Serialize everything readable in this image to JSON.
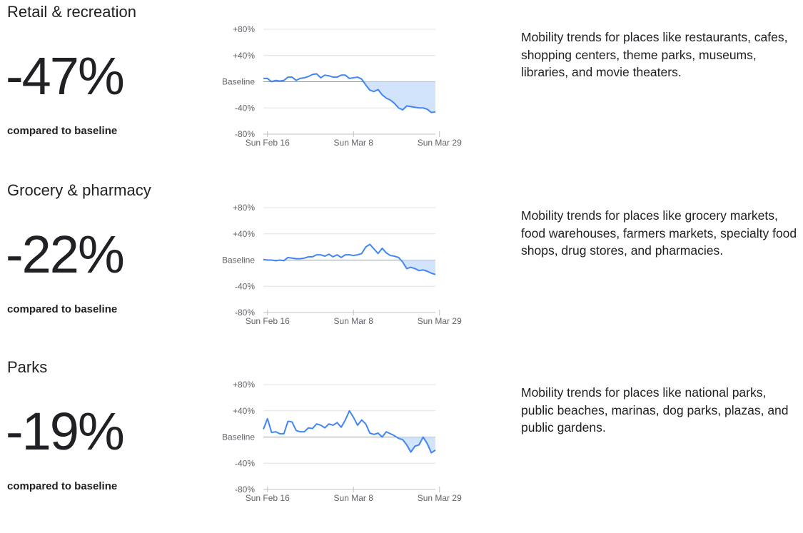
{
  "common": {
    "caption": "compared to baseline",
    "line_color": "#4285f4",
    "fill_color": "#d2e3fc"
  },
  "sections": [
    {
      "title": "Retail & recreation",
      "value": "-47%",
      "description": "Mobility trends for places like restaurants, cafes, shopping centers, theme parks, museums, libraries, and movie theaters."
    },
    {
      "title": "Grocery & pharmacy",
      "value": "-22%",
      "description": "Mobility trends for places like grocery markets, food warehouses, farmers markets, specialty food shops, drug stores, and pharmacies."
    },
    {
      "title": "Parks",
      "value": "-19%",
      "description": "Mobility trends for places like national parks, public beaches, marinas, dog parks, plazas, and public gardens."
    }
  ],
  "chart_data": [
    {
      "type": "area",
      "x_start": "Feb 15",
      "x_end": "Mar 29",
      "ylim": [
        -80,
        80
      ],
      "y_ticks": [
        {
          "value": 80,
          "label": "+80%"
        },
        {
          "value": 40,
          "label": "+40%"
        },
        {
          "value": 0,
          "label": "Baseline"
        },
        {
          "value": -40,
          "label": "-40%"
        },
        {
          "value": -80,
          "label": "-80%"
        }
      ],
      "x_ticks": [
        {
          "index": 1,
          "label": "Sun Feb 16"
        },
        {
          "index": 22,
          "label": "Sun Mar 8"
        },
        {
          "index": 43,
          "label": "Sun Mar 29"
        }
      ],
      "values": [
        5,
        5,
        0,
        2,
        1,
        2,
        7,
        7,
        2,
        5,
        6,
        8,
        11,
        12,
        6,
        10,
        9,
        7,
        7,
        10,
        10,
        5,
        6,
        7,
        4,
        -5,
        -13,
        -15,
        -12,
        -20,
        -25,
        -28,
        -33,
        -40,
        -43,
        -37,
        -38,
        -39,
        -40,
        -40,
        -42,
        -47,
        -46
      ]
    },
    {
      "type": "area",
      "x_start": "Feb 15",
      "x_end": "Mar 29",
      "ylim": [
        -80,
        80
      ],
      "y_ticks": [
        {
          "value": 80,
          "label": "+80%"
        },
        {
          "value": 40,
          "label": "+40%"
        },
        {
          "value": 0,
          "label": "Baseline"
        },
        {
          "value": -40,
          "label": "-40%"
        },
        {
          "value": -80,
          "label": "-80%"
        }
      ],
      "x_ticks": [
        {
          "index": 1,
          "label": "Sun Feb 16"
        },
        {
          "index": 22,
          "label": "Sun Mar 8"
        },
        {
          "index": 43,
          "label": "Sun Mar 29"
        }
      ],
      "values": [
        1,
        0,
        0,
        -1,
        0,
        -1,
        4,
        3,
        2,
        2,
        3,
        5,
        5,
        8,
        8,
        6,
        9,
        5,
        8,
        4,
        8,
        8,
        7,
        8,
        10,
        20,
        24,
        17,
        10,
        18,
        11,
        7,
        6,
        4,
        -3,
        -13,
        -11,
        -13,
        -16,
        -15,
        -17,
        -20,
        -22
      ]
    },
    {
      "type": "area",
      "x_start": "Feb 15",
      "x_end": "Mar 29",
      "ylim": [
        -80,
        80
      ],
      "y_ticks": [
        {
          "value": 80,
          "label": "+80%"
        },
        {
          "value": 40,
          "label": "+40%"
        },
        {
          "value": 0,
          "label": "Baseline"
        },
        {
          "value": -40,
          "label": "-40%"
        },
        {
          "value": -80,
          "label": "-80%"
        }
      ],
      "x_ticks": [
        {
          "index": 1,
          "label": "Sun Feb 16"
        },
        {
          "index": 22,
          "label": "Sun Mar 8"
        },
        {
          "index": 43,
          "label": "Sun Mar 29"
        }
      ],
      "values": [
        12,
        28,
        7,
        8,
        5,
        5,
        24,
        23,
        10,
        8,
        8,
        14,
        13,
        20,
        18,
        14,
        20,
        18,
        22,
        15,
        26,
        40,
        30,
        18,
        26,
        20,
        6,
        4,
        6,
        0,
        8,
        5,
        2,
        -2,
        -4,
        -12,
        -23,
        -14,
        -12,
        0,
        -10,
        -24,
        -20
      ]
    }
  ]
}
